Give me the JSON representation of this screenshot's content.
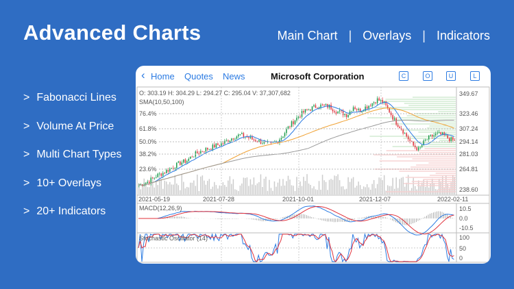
{
  "title": "Advanced Charts",
  "nav": [
    "Main Chart",
    "Overlays",
    "Indicators"
  ],
  "nav_separator": "|",
  "features": [
    "Fabonacci Lines",
    "Volume At Price",
    "Multi Chart Types",
    "10+ Overlays",
    "20+ Indicators"
  ],
  "feature_bullet": ">",
  "card": {
    "back": "Home",
    "quotes": "Quotes",
    "news": "News",
    "title": "Microsoft Corporation",
    "buttons": [
      "C",
      "O",
      "U",
      "L"
    ],
    "ohlc": "O: 303.19  H: 304.29  L: 294.27  C: 295.04  V: 37,307,682",
    "sma": "SMA(10,50,100)",
    "fib_levels": [
      "76.4%",
      "61.8%",
      "50.0%",
      "38.2%",
      "23.6%"
    ],
    "price_ticks": [
      "349.67",
      "323.46",
      "307.24",
      "294.14",
      "281.03",
      "264.81",
      "238.60"
    ],
    "dates": [
      "2021-05-19",
      "2021-07-28",
      "2021-10-01",
      "2021-12-07",
      "2022-02-11"
    ],
    "macd": {
      "label": "MACD(12,26,9)",
      "ticks": [
        "10.5",
        "0.0",
        "-10.5"
      ]
    },
    "stoch": {
      "label": "Stochastic Oscillator (14)",
      "ticks": [
        "100",
        "50",
        "0"
      ]
    },
    "colors": {
      "up": "#1a9a4a",
      "down": "#e0303a",
      "sma10": "#2a7ae2",
      "sma50": "#f0a030",
      "sma100": "#999999",
      "accent": "#2a7ae2"
    },
    "closes": [
      244,
      246,
      250,
      255,
      258,
      262,
      266,
      270,
      272,
      278,
      282,
      285,
      287,
      290,
      292,
      296,
      300,
      302,
      300,
      297,
      295,
      293,
      291,
      294,
      300,
      310,
      318,
      325,
      330,
      333,
      336,
      336,
      335,
      330,
      328,
      325,
      335,
      330,
      334,
      338,
      343,
      340,
      330,
      318,
      310,
      300,
      290,
      285,
      295,
      300,
      303,
      302,
      298,
      295
    ]
  }
}
